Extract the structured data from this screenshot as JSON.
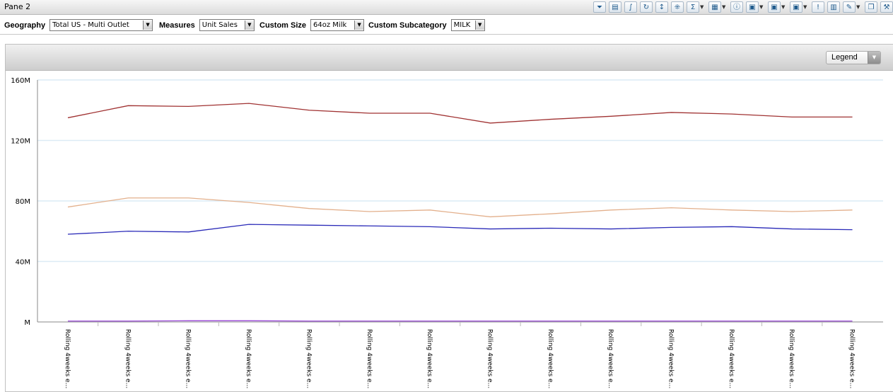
{
  "pane": {
    "title": "Pane 2"
  },
  "toolbar": {
    "icons": [
      "filter-icon",
      "table-icon",
      "chart-icon",
      "refresh-icon",
      "sort-icon",
      "pivot-icon",
      "sum-icon",
      "grid-icon",
      "info-icon",
      "excel-icon",
      "excel2-icon",
      "export-icon",
      "alert-icon",
      "columns-icon",
      "edit-icon",
      "copy-icon",
      "tools-icon"
    ]
  },
  "filters": [
    {
      "label": "Geography",
      "value": "Total US - Multi Outlet"
    },
    {
      "label": "Measures",
      "value": "Unit Sales"
    },
    {
      "label": "Custom Size",
      "value": "64oz Milk"
    },
    {
      "label": "Custom Subcategory",
      "value": "MILK"
    }
  ],
  "legend": {
    "label": "Legend"
  },
  "chart_data": {
    "type": "line",
    "categories": [
      "Rolling 4weeks e...",
      "Rolling 4weeks e...",
      "Rolling 4weeks e...",
      "Rolling 4weeks e...",
      "Rolling 4weeks e...",
      "Rolling 4weeks e...",
      "Rolling 4weeks e...",
      "Rolling 4weeks e...",
      "Rolling 4weeks e...",
      "Rolling 4weeks e...",
      "Rolling 4weeks e...",
      "Rolling 4weeks e...",
      "Rolling 4weeks e...",
      "Rolling 4weeks e..."
    ],
    "y_ticks": [
      "M",
      "40M",
      "80M",
      "120M",
      "160M"
    ],
    "ylim": [
      0,
      160
    ],
    "y_unit": "M",
    "grid": true,
    "series": [
      {
        "color": "#a03232",
        "values": [
          135,
          143,
          142.5,
          144.5,
          140,
          138,
          138,
          131.5,
          134,
          136,
          138.5,
          137.5,
          135.5,
          135.5
        ]
      },
      {
        "color": "#e3b08c",
        "values": [
          76,
          82,
          82,
          79,
          75,
          73,
          74,
          69.5,
          71.5,
          74,
          75.5,
          74,
          73,
          74
        ]
      },
      {
        "color": "#2a2ab8",
        "values": [
          58,
          60,
          59.5,
          64.5,
          64,
          63.5,
          63,
          61.5,
          62,
          61.5,
          62.5,
          63,
          61.5,
          61
        ]
      },
      {
        "color": "#9a48d8",
        "values": [
          0.6,
          0.6,
          0.8,
          0.8,
          0.6,
          0.6,
          0.6,
          0.6,
          0.6,
          0.6,
          0.6,
          0.6,
          0.6,
          0.6
        ]
      }
    ]
  }
}
